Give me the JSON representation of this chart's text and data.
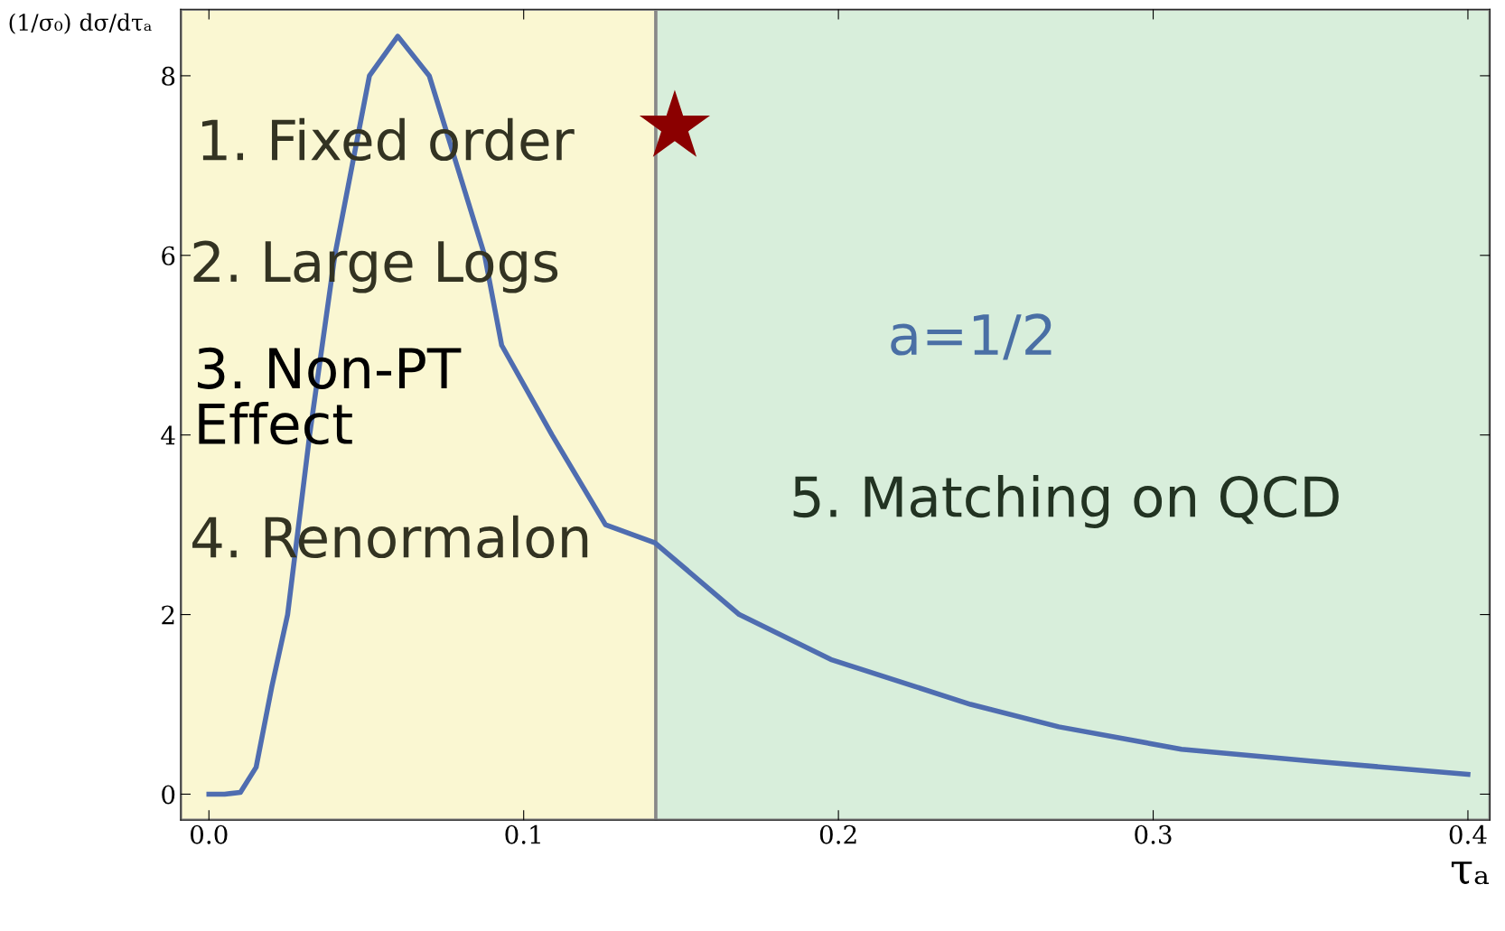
{
  "chart_data": {
    "type": "line",
    "xlabel": "τₐ",
    "ylabel": "(1/σ₀) dσ/dτₐ",
    "x": [
      0.0,
      0.005,
      0.01,
      0.015,
      0.02,
      0.025,
      0.032,
      0.04,
      0.051,
      0.06,
      0.07,
      0.0876,
      0.093,
      0.109,
      0.126,
      0.1417,
      0.1685,
      0.1976,
      0.242,
      0.27,
      0.309,
      0.35,
      0.4
    ],
    "series": [
      {
        "color": "#4f6db0",
        "values": [
          0.0,
          0.0,
          0.02,
          0.3,
          1.2,
          2.0,
          4.0,
          6.0,
          8.0,
          8.44,
          8.0,
          6.0,
          5.0,
          4.0,
          3.0,
          2.8,
          2.0,
          1.5,
          1.0,
          0.75,
          0.5,
          0.37,
          0.22
        ]
      },
      {
        "type": "scatter",
        "color": "#8b0000",
        "marker": "star",
        "x": [
          0.148
        ],
        "values": [
          7.43
        ]
      }
    ],
    "xlim": [
      -0.009,
      0.407
    ],
    "ylim": [
      -0.29,
      8.74
    ],
    "xticks": [
      {
        "value": 0,
        "label": "0.0"
      },
      0.1,
      0.2,
      0.3,
      0.4
    ],
    "yticks": [
      0,
      2,
      4,
      6,
      8
    ],
    "grid": false,
    "bands": [
      {
        "axis": "x",
        "from": -0.009,
        "to": 0.142,
        "color": "#faf7d2"
      },
      {
        "axis": "x",
        "from": 0.142,
        "to": 0.407,
        "color": "#d8eedb"
      }
    ],
    "annotations": [
      "1. Fixed order",
      "2. Large Logs",
      "3. Non-PT\nEffect",
      "4. Renormalon",
      "a=1/2",
      "5. Matching on QCD"
    ]
  }
}
